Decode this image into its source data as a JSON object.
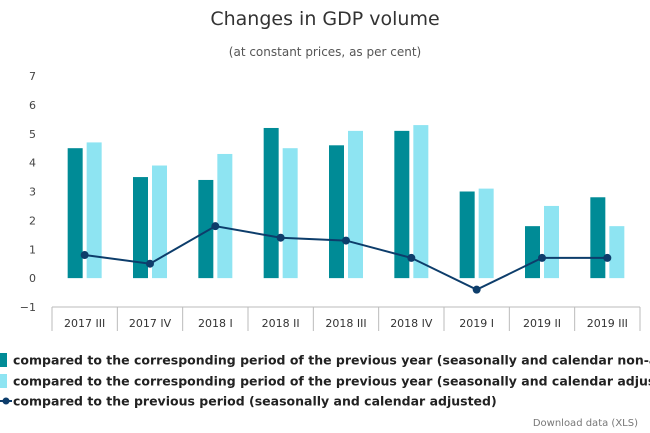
{
  "chart_data": {
    "type": "bar",
    "title": "Changes in GDP volume",
    "subtitle": "(at constant prices, as per cent)",
    "categories": [
      "2017 III",
      "2017 IV",
      "2018 I",
      "2018 II",
      "2018 III",
      "2018 IV",
      "2019 I",
      "2019 II",
      "2019 III"
    ],
    "ylim": [
      -1,
      7
    ],
    "yticks": [
      "7",
      "6",
      "5",
      "4",
      "3",
      "2",
      "1",
      "0",
      "−1"
    ],
    "grid": false,
    "legend_position": "bottom",
    "series": [
      {
        "name": "compared to the corresponding period of the previous year (seasonally and calendar non-adju",
        "type": "bar",
        "color": "#008b96",
        "values": [
          4.5,
          3.5,
          3.4,
          5.2,
          4.6,
          5.1,
          3.0,
          1.8,
          2.8
        ]
      },
      {
        "name": "compared to the corresponding period of the previous year (seasonally and calendar adjusted)",
        "type": "bar",
        "color": "#8ee4f2",
        "values": [
          4.7,
          3.9,
          4.3,
          4.5,
          5.1,
          5.3,
          3.1,
          2.5,
          1.8
        ]
      },
      {
        "name": "compared to the previous period (seasonally and calendar adjusted)",
        "type": "line",
        "color": "#0d3d6b",
        "values": [
          0.8,
          0.5,
          1.8,
          1.4,
          1.3,
          0.7,
          -0.4,
          0.7,
          0.7
        ]
      }
    ]
  },
  "download_link": "Download data (XLS)"
}
